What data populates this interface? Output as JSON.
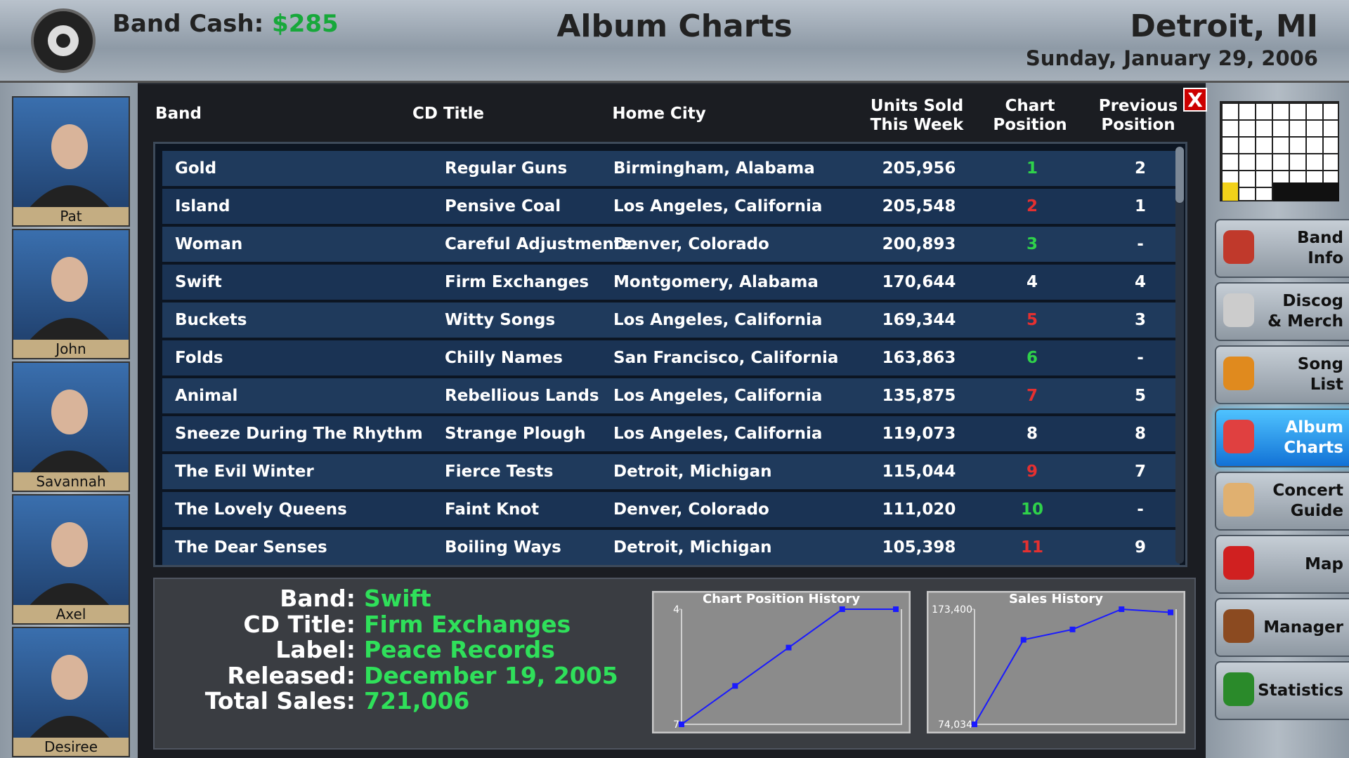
{
  "header": {
    "cash_label": "Band Cash:",
    "cash": "$285",
    "title": "Album Charts",
    "city": "Detroit, MI",
    "date": "Sunday, January 29, 2006"
  },
  "members": [
    "Pat",
    "John",
    "Savannah",
    "Axel",
    "Desiree"
  ],
  "close": "X",
  "table": {
    "columns": [
      "Band",
      "CD Title",
      "Home City",
      "Units Sold This Week",
      "Chart Position",
      "Previous Position"
    ],
    "rows": [
      [
        "Gold",
        "Regular Guns",
        "Birmingham, Alabama",
        "205,956",
        "1",
        "2"
      ],
      [
        "Island",
        "Pensive Coal",
        "Los Angeles, California",
        "205,548",
        "2",
        "1"
      ],
      [
        "Woman",
        "Careful Adjustments",
        "Denver, Colorado",
        "200,893",
        "3",
        "-"
      ],
      [
        "Swift",
        "Firm Exchanges",
        "Montgomery, Alabama",
        "170,644",
        "4",
        "4"
      ],
      [
        "Buckets",
        "Witty Songs",
        "Los Angeles, California",
        "169,344",
        "5",
        "3"
      ],
      [
        "Folds",
        "Chilly Names",
        "San Francisco, California",
        "163,863",
        "6",
        "-"
      ],
      [
        "Animal",
        "Rebellious Lands",
        "Los Angeles, California",
        "135,875",
        "7",
        "5"
      ],
      [
        "Sneeze During The Rhythm",
        "Strange Plough",
        "Los Angeles, California",
        "119,073",
        "8",
        "8"
      ],
      [
        "The Evil Winter",
        "Fierce Tests",
        "Detroit, Michigan",
        "115,044",
        "9",
        "7"
      ],
      [
        "The Lovely Queens",
        "Faint Knot",
        "Denver, Colorado",
        "111,020",
        "10",
        "-"
      ],
      [
        "The Dear Senses",
        "Boiling Ways",
        "Detroit, Michigan",
        "105,398",
        "11",
        "9"
      ]
    ]
  },
  "details": {
    "rows": [
      {
        "label": "Band:",
        "value": "Swift"
      },
      {
        "label": "CD Title:",
        "value": "Firm Exchanges"
      },
      {
        "label": "Label:",
        "value": "Peace Records"
      },
      {
        "label": "Released:",
        "value": "December 19, 2005"
      },
      {
        "label": "Total Sales:",
        "value": "721,006"
      }
    ]
  },
  "chart_data": [
    {
      "type": "line",
      "title": "Chart Position History",
      "categories": [
        null,
        null,
        null,
        null,
        null
      ],
      "values": [
        7,
        6,
        5,
        4,
        4
      ],
      "color": "#1a1aff",
      "ylim": [
        7,
        4
      ],
      "yticks": [
        4,
        7
      ]
    },
    {
      "type": "line",
      "title": "Sales History",
      "categories": [
        null,
        null,
        null,
        null,
        null
      ],
      "values": [
        74034,
        147000,
        155928,
        173400,
        170644
      ],
      "color": "#1a1aff",
      "ylim": [
        74034,
        173400
      ],
      "yticks": [
        {
          "value": 173400,
          "label": "173,400"
        },
        {
          "value": 74034,
          "label": "74,034"
        }
      ]
    }
  ],
  "menu": [
    [
      "Band",
      "Info"
    ],
    [
      "Discog",
      "& Merch"
    ],
    [
      "Song",
      "List"
    ],
    [
      "Album",
      "Charts"
    ],
    [
      "Concert",
      "Guide"
    ],
    [
      "Map"
    ],
    [
      "Manager"
    ],
    [
      "Statistics"
    ]
  ]
}
